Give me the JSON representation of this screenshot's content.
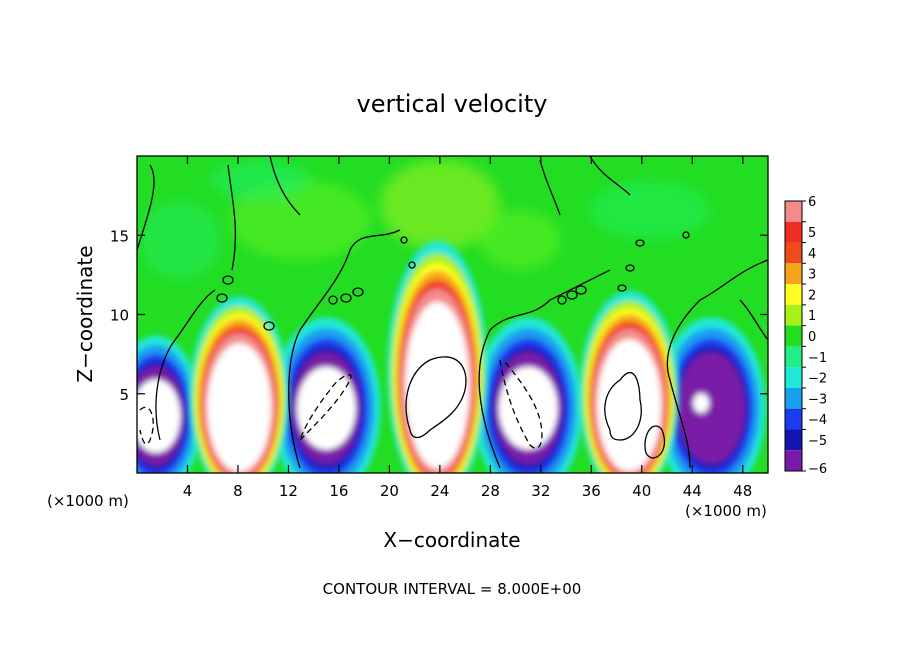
{
  "chart_data": {
    "type": "heatmap",
    "title": "vertical velocity",
    "xlabel": "X−coordinate",
    "ylabel": "Z−coordinate",
    "x_unit_label": "(×1000 m)",
    "z_unit_label": "(×1000 m)",
    "footer": "CONTOUR INTERVAL = 8.000E+00",
    "xlim": [
      0,
      50
    ],
    "ylim": [
      0,
      20
    ],
    "x_ticks": [
      4,
      8,
      12,
      16,
      20,
      24,
      28,
      32,
      36,
      40,
      44,
      48
    ],
    "y_ticks": [
      5,
      10,
      15
    ],
    "colorbar": {
      "levels": [
        6,
        5,
        4,
        3,
        2,
        1,
        0,
        -1,
        -2,
        -3,
        -4,
        -5,
        -6
      ],
      "level_labels": [
        "6",
        "5",
        "4",
        "3",
        "2",
        "1",
        "0",
        "−1",
        "−2",
        "−3",
        "−4",
        "−5",
        "−6"
      ],
      "colors": [
        "#f28c8c",
        "#ee2e22",
        "#f04a1c",
        "#f7a51b",
        "#ffff22",
        "#a9ef1a",
        "#22dd22",
        "#22ee88",
        "#22e8d8",
        "#1a9ef0",
        "#1a3cf0",
        "#1414b0",
        "#7a1aa8"
      ]
    },
    "updrafts": [
      {
        "x": 8.1,
        "z_top": 9.5,
        "peak": 6
      },
      {
        "x": 23.8,
        "z_top": 12.5,
        "peak": 6
      },
      {
        "x": 39.0,
        "z_top": 9.8,
        "peak": 6
      }
    ],
    "downdrafts": [
      {
        "x": 1.5,
        "z_top": 7.5,
        "peak": -6
      },
      {
        "x": 15.0,
        "z_top": 8.5,
        "peak": -6
      },
      {
        "x": 31.0,
        "z_top": 8.5,
        "peak": -6
      },
      {
        "x": 45.5,
        "z_top": 8.5,
        "peak": -6
      }
    ],
    "background_value": 0,
    "grid": false
  }
}
